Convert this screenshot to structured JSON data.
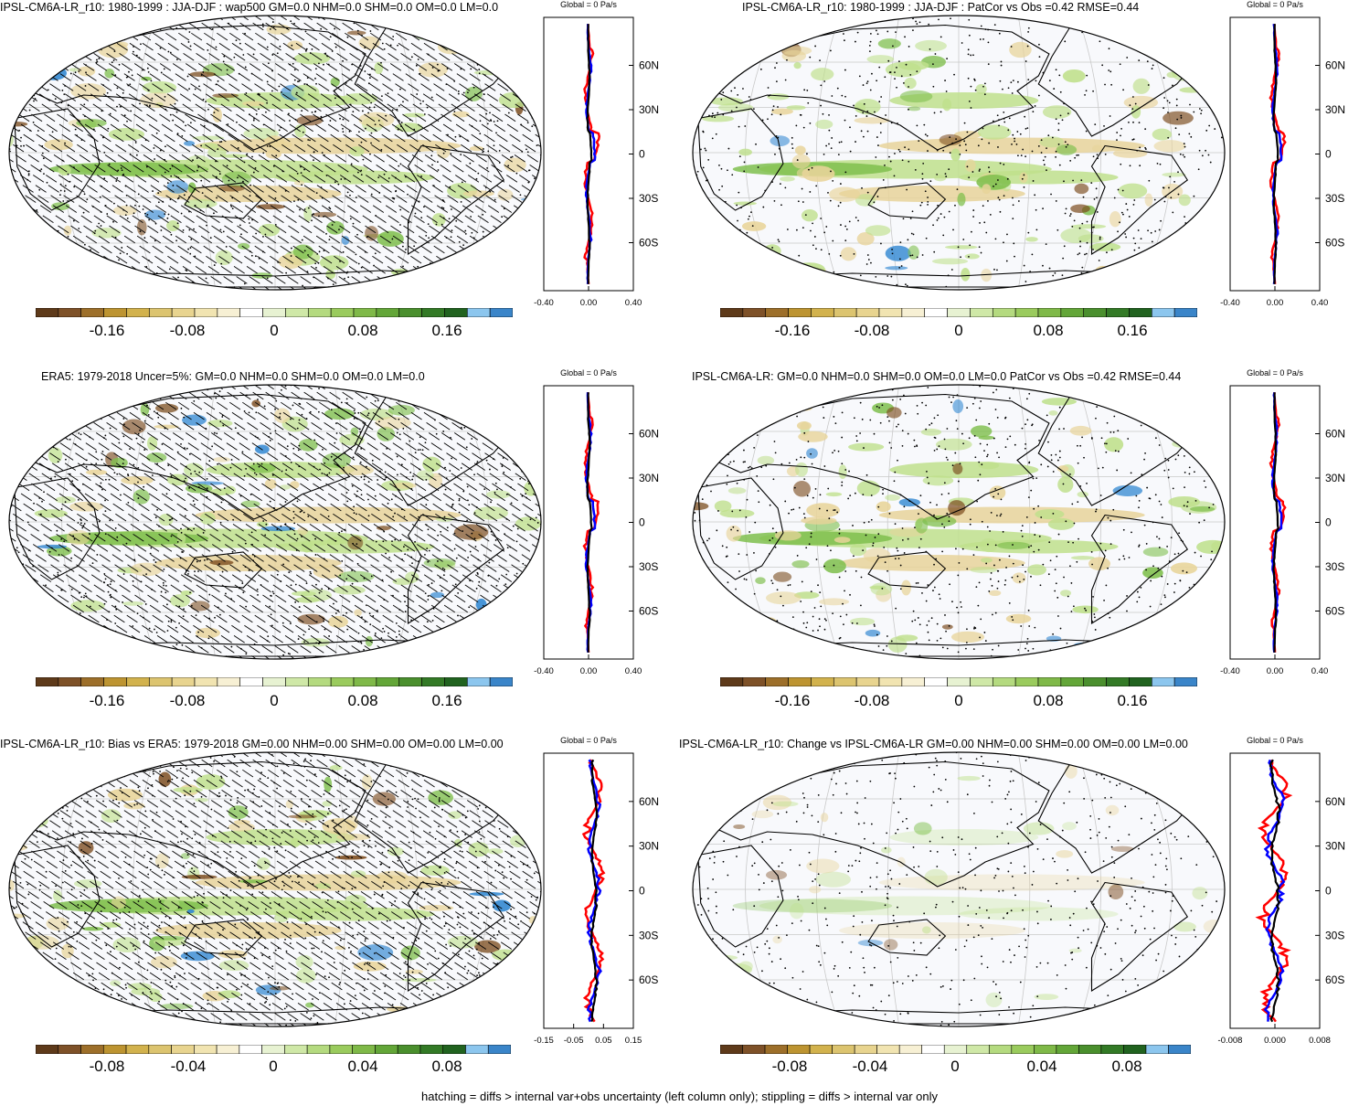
{
  "colorbar_colors": [
    "#5e3a1a",
    "#7e5128",
    "#9d6f2a",
    "#bd9431",
    "#d2b24d",
    "#dcc46f",
    "#e8d48f",
    "#f1e4b1",
    "#f7f0d4",
    "#ffffff",
    "#e7f2d2",
    "#cfe8a7",
    "#b4da7f",
    "#9acb5d",
    "#7fb948",
    "#63a638",
    "#4a8f2d",
    "#337a26",
    "#21631f",
    "#8cc6ee",
    "#3a85c9"
  ],
  "map_colors": {
    "land_outline": "#000000",
    "ocean": "#f8f9fc",
    "grid": "#c9c9c9",
    "brown": "#7a4a1c",
    "tan": "#e8d49a",
    "light_green": "#bfe08c",
    "green": "#7fbf4d",
    "blue": "#2f86d1"
  },
  "profile_colors": {
    "red": "#ff0000",
    "blue": "#0000ff",
    "black": "#000000"
  },
  "footer": "hatching = diffs > internal var+obs uncertainty (left column only); stippling = diffs > internal var only",
  "chart_data": [
    {
      "type": "heatmap",
      "panel": "top-left",
      "title": "IPSL-CM6A-LR_r10: 1980-1999 : JJA-DJF : wap500 GM=0.0 NHM=0.0 SHM=0.0 OM=0.0 LM=0.0",
      "colorbar_ticks": [
        "-0.16",
        "-0.08",
        "0",
        "0.08",
        "0.16"
      ],
      "hatching": true,
      "stippling": true,
      "profile": {
        "title": "Global = 0 Pa/s",
        "xticks": [
          "-0.40",
          "0.00",
          "0.40"
        ],
        "yticks": [
          "60N",
          "30N",
          "0",
          "30S",
          "60S"
        ]
      }
    },
    {
      "type": "heatmap",
      "panel": "top-right",
      "title": "IPSL-CM6A-LR_r10: 1980-1999 : JJA-DJF : PatCor vs Obs =0.42 RMSE=0.44",
      "colorbar_ticks": [
        "-0.16",
        "-0.08",
        "0",
        "0.08",
        "0.16"
      ],
      "hatching": false,
      "stippling": true,
      "profile": {
        "title": "Global = 0 Pa/s",
        "xticks": [
          "-0.40",
          "0.00",
          "0.40"
        ],
        "yticks": [
          "60N",
          "30N",
          "0",
          "30S",
          "60S"
        ]
      }
    },
    {
      "type": "heatmap",
      "panel": "middle-left",
      "title": "ERA5: 1979-2018 Uncer=5%: GM=0.0 NHM=0.0 SHM=0.0 OM=0.0 LM=0.0",
      "colorbar_ticks": [
        "-0.16",
        "-0.08",
        "0",
        "0.08",
        "0.16"
      ],
      "hatching": true,
      "stippling": true,
      "profile": {
        "title": "Global = 0 Pa/s",
        "xticks": [
          "-0.40",
          "0.00",
          "0.40"
        ],
        "yticks": [
          "60N",
          "30N",
          "0",
          "30S",
          "60S"
        ]
      }
    },
    {
      "type": "heatmap",
      "panel": "middle-right",
      "title": "IPSL-CM6A-LR: GM=0.0 NHM=0.0 SHM=0.0 OM=0.0 LM=0.0 PatCor vs Obs =0.42 RMSE=0.44",
      "colorbar_ticks": [
        "-0.16",
        "-0.08",
        "0",
        "0.08",
        "0.16"
      ],
      "hatching": false,
      "stippling": true,
      "profile": {
        "title": "Global = 0 Pa/s",
        "xticks": [
          "-0.40",
          "0.00",
          "0.40"
        ],
        "yticks": [
          "60N",
          "30N",
          "0",
          "30S",
          "60S"
        ]
      }
    },
    {
      "type": "heatmap",
      "panel": "bottom-left",
      "title": "IPSL-CM6A-LR_r10: Bias vs ERA5: 1979-2018 GM=0.00 NHM=0.00 SHM=0.00 OM=0.00 LM=0.00",
      "colorbar_ticks": [
        "-0.08",
        "-0.04",
        "0",
        "0.04",
        "0.08"
      ],
      "hatching": true,
      "stippling": true,
      "profile": {
        "title": "Global = 0 Pa/s",
        "xticks": [
          "-0.15",
          "-0.05",
          "0.05",
          "0.15"
        ],
        "yticks": [
          "60N",
          "30N",
          "0",
          "30S",
          "60S"
        ]
      }
    },
    {
      "type": "heatmap",
      "panel": "bottom-right",
      "title": "IPSL-CM6A-LR_r10: Change vs IPSL-CM6A-LR GM=0.00 NHM=0.00 SHM=0.00 OM=0.00 LM=0.00",
      "colorbar_ticks": [
        "-0.08",
        "-0.04",
        "0",
        "0.04",
        "0.08"
      ],
      "hatching": false,
      "stippling": true,
      "profile": {
        "title": "Global = 0 Pa/s",
        "xticks": [
          "-0.008",
          "0.000",
          "0.008"
        ],
        "yticks": [
          "60N",
          "30N",
          "0",
          "30S",
          "60S"
        ]
      }
    }
  ]
}
